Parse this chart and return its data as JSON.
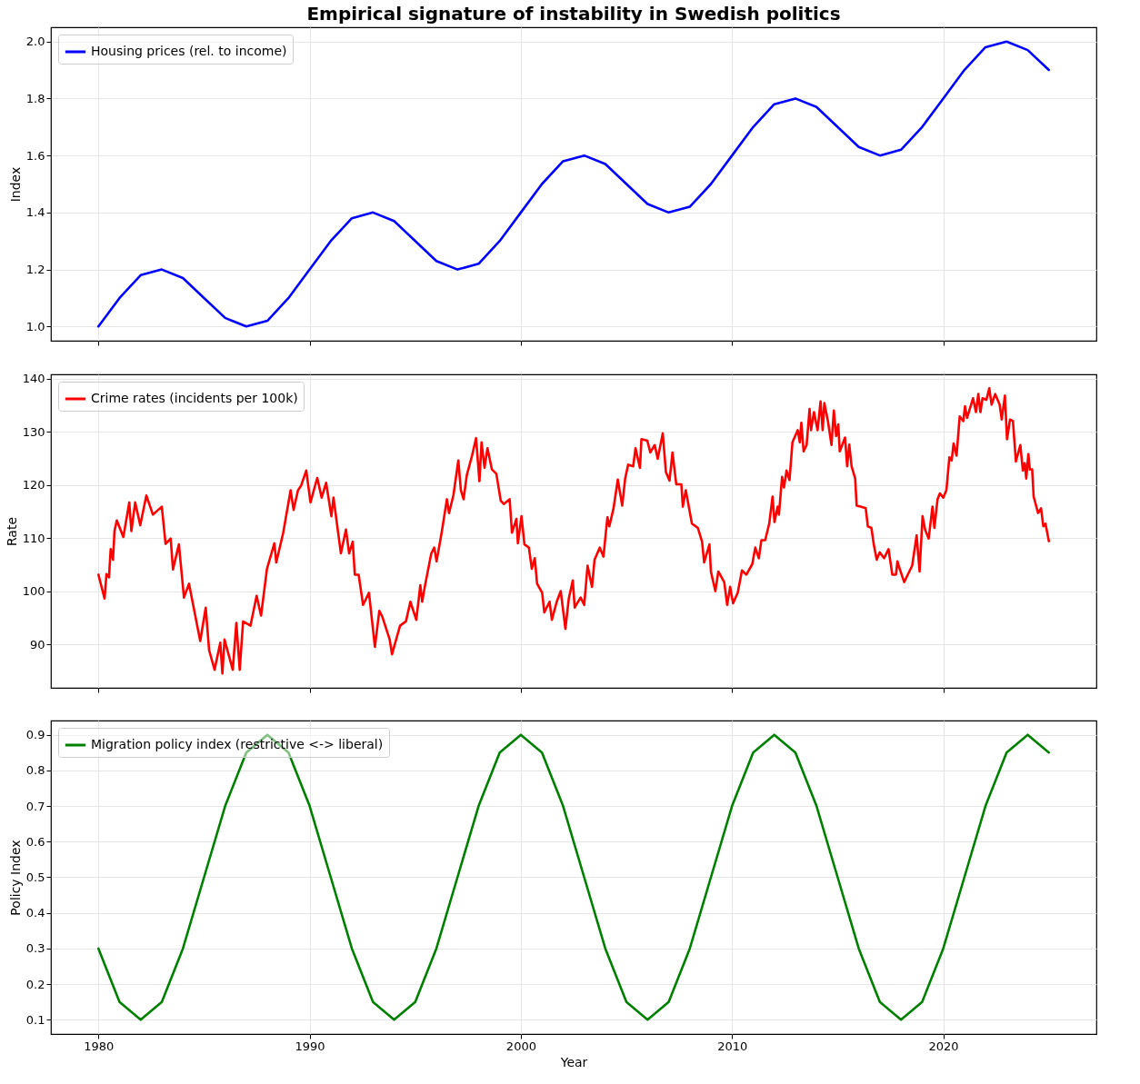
{
  "chart_data": [
    {
      "type": "line",
      "title": "Empirical signature of instability in Swedish politics",
      "ylabel": "Index",
      "x": [
        1980,
        1981,
        1982,
        1983,
        1984,
        1985,
        1986,
        1987,
        1988,
        1989,
        1990,
        1991,
        1992,
        1993,
        1994,
        1995,
        1996,
        1997,
        1998,
        1999,
        2000,
        2001,
        2002,
        2003,
        2004,
        2005,
        2006,
        2007,
        2008,
        2009,
        2010,
        2011,
        2012,
        2013,
        2014,
        2015,
        2016,
        2017,
        2018,
        2019,
        2020,
        2021,
        2022,
        2023,
        2024,
        2025
      ],
      "series": [
        {
          "name": "Housing prices (rel. to income)",
          "color": "#0000ff",
          "values": [
            1.0,
            1.1,
            1.18,
            1.2,
            1.17,
            1.1,
            1.03,
            1.0,
            1.02,
            1.1,
            1.2,
            1.3,
            1.38,
            1.4,
            1.37,
            1.3,
            1.23,
            1.2,
            1.22,
            1.3,
            1.4,
            1.5,
            1.58,
            1.6,
            1.57,
            1.5,
            1.43,
            1.4,
            1.42,
            1.5,
            1.6,
            1.7,
            1.78,
            1.8,
            1.77,
            1.7,
            1.63,
            1.6,
            1.62,
            1.7,
            1.8,
            1.9,
            1.98,
            2.0,
            1.97,
            1.9
          ]
        }
      ],
      "xlim": [
        1977.75,
        2027.25
      ],
      "xticks": [
        1980,
        1990,
        2000,
        2010,
        2020
      ],
      "ylim": [
        0.95,
        2.05
      ],
      "yticks": [
        {
          "value": 1.0,
          "label": "1.0"
        },
        {
          "value": 1.2,
          "label": "1.2"
        },
        {
          "value": 1.4,
          "label": "1.4"
        },
        {
          "value": 1.6,
          "label": "1.6"
        },
        {
          "value": 1.8,
          "label": "1.8"
        },
        {
          "value": 2.0,
          "label": "2.0"
        }
      ],
      "grid": true,
      "legend": "top left",
      "tick_labels": "y",
      "line_style": "solid",
      "marker": "none"
    },
    {
      "type": "line",
      "ylabel": "Rate",
      "x": [
        1980.0,
        1980.29,
        1980.38,
        1980.5,
        1980.58,
        1980.69,
        1980.76,
        1980.87,
        1981.18,
        1981.46,
        1981.56,
        1981.74,
        1981.98,
        1982.27,
        1982.58,
        1983.0,
        1983.18,
        1983.42,
        1983.53,
        1983.81,
        1984.05,
        1984.29,
        1984.51,
        1984.82,
        1985.08,
        1985.24,
        1985.5,
        1985.77,
        1985.87,
        1985.97,
        1986.36,
        1986.53,
        1986.69,
        1986.85,
        1987.2,
        1987.49,
        1987.7,
        1987.98,
        1988.33,
        1988.42,
        1988.75,
        1989.1,
        1989.24,
        1989.45,
        1989.59,
        1989.84,
        1990.04,
        1990.36,
        1990.57,
        1990.78,
        1991.03,
        1991.13,
        1991.48,
        1991.72,
        1991.87,
        1992.04,
        1992.14,
        1992.32,
        1992.53,
        1992.81,
        1993.09,
        1993.3,
        1993.44,
        1993.79,
        1993.9,
        1994.28,
        1994.56,
        1994.77,
        1995.05,
        1995.24,
        1995.33,
        1995.45,
        1995.76,
        1995.9,
        1996.01,
        1996.25,
        1996.5,
        1996.6,
        1996.81,
        1997.04,
        1997.16,
        1997.29,
        1997.44,
        1997.69,
        1997.88,
        1998.04,
        1998.14,
        1998.28,
        1998.42,
        1998.63,
        1998.84,
        1999.05,
        1999.19,
        1999.47,
        1999.58,
        1999.79,
        1999.86,
        2000.03,
        2000.17,
        2000.38,
        2000.52,
        2000.66,
        2000.77,
        2001.01,
        2001.11,
        2001.36,
        2001.47,
        2001.7,
        2001.89,
        2002.11,
        2002.27,
        2002.46,
        2002.55,
        2002.83,
        2003.0,
        2003.16,
        2003.37,
        2003.49,
        2003.74,
        2003.91,
        2004.1,
        2004.19,
        2004.39,
        2004.59,
        2004.8,
        2004.94,
        2005.08,
        2005.32,
        2005.43,
        2005.64,
        2005.71,
        2005.99,
        2006.13,
        2006.34,
        2006.48,
        2006.72,
        2006.87,
        2007.04,
        2007.18,
        2007.36,
        2007.6,
        2007.67,
        2007.81,
        2008.1,
        2008.38,
        2008.58,
        2008.68,
        2008.93,
        2009.0,
        2009.21,
        2009.35,
        2009.63,
        2009.77,
        2009.91,
        2010.05,
        2010.27,
        2010.47,
        2010.68,
        2010.96,
        2011.1,
        2011.27,
        2011.39,
        2011.57,
        2011.76,
        2011.92,
        2012.01,
        2012.16,
        2012.22,
        2012.37,
        2012.46,
        2012.58,
        2012.72,
        2012.86,
        2013.11,
        2013.21,
        2013.28,
        2013.39,
        2013.53,
        2013.67,
        2013.74,
        2013.88,
        2014.05,
        2014.19,
        2014.29,
        2014.37,
        2014.54,
        2014.71,
        2014.82,
        2014.93,
        2015.03,
        2015.1,
        2015.35,
        2015.45,
        2015.55,
        2015.66,
        2015.83,
        2015.9,
        2016.08,
        2016.33,
        2016.43,
        2016.6,
        2016.71,
        2016.85,
        2016.99,
        2017.2,
        2017.41,
        2017.59,
        2017.76,
        2017.83,
        2017.94,
        2018.15,
        2018.32,
        2018.53,
        2018.74,
        2018.88,
        2019.02,
        2019.14,
        2019.31,
        2019.49,
        2019.58,
        2019.73,
        2019.84,
        2020.0,
        2020.15,
        2020.29,
        2020.4,
        2020.49,
        2020.63,
        2020.78,
        2020.95,
        2021.03,
        2021.13,
        2021.41,
        2021.55,
        2021.66,
        2021.76,
        2021.86,
        2022.04,
        2022.18,
        2022.29,
        2022.46,
        2022.67,
        2022.77,
        2022.92,
        2023.02,
        2023.16,
        2023.3,
        2023.44,
        2023.65,
        2023.77,
        2023.86,
        2023.93,
        2024.03,
        2024.1,
        2024.21,
        2024.28,
        2024.49,
        2024.63,
        2024.74,
        2024.84,
        2025.0
      ],
      "series": [
        {
          "name": "Crime rates (incidents per 100k)",
          "color": "#ff0000",
          "values": [
            103.1,
            98.6,
            103.2,
            102.6,
            107.9,
            105.9,
            111.3,
            113.3,
            110.2,
            116.7,
            111.3,
            116.7,
            112.4,
            118.0,
            114.4,
            115.9,
            108.9,
            109.9,
            104.1,
            108.8,
            98.8,
            101.4,
            96.9,
            90.6,
            96.9,
            88.9,
            85.2,
            90.3,
            84.5,
            90.9,
            85.2,
            94.0,
            85.2,
            94.3,
            93.5,
            99.1,
            95.4,
            104.2,
            109.0,
            105.4,
            111.0,
            119.0,
            115.3,
            119.0,
            119.8,
            122.7,
            116.7,
            121.3,
            117.6,
            120.4,
            114.1,
            117.6,
            107.1,
            111.6,
            107.1,
            109.3,
            103.1,
            103.1,
            97.4,
            99.7,
            89.5,
            96.3,
            95.2,
            90.9,
            88.1,
            93.5,
            94.3,
            98.0,
            94.6,
            101.1,
            98.0,
            100.8,
            107.1,
            108.2,
            105.6,
            111.0,
            117.3,
            114.7,
            118.1,
            124.6,
            119.0,
            117.3,
            121.8,
            125.5,
            128.8,
            120.7,
            128.0,
            123.2,
            126.9,
            122.9,
            122.1,
            117.0,
            116.4,
            117.3,
            111.0,
            113.6,
            109.0,
            114.1,
            108.8,
            108.2,
            104.2,
            106.2,
            101.4,
            99.7,
            96.0,
            98.0,
            94.6,
            98.0,
            100.0,
            92.9,
            98.6,
            102.0,
            96.9,
            98.8,
            97.4,
            104.8,
            100.8,
            105.9,
            108.2,
            106.5,
            113.9,
            112.2,
            115.6,
            121.0,
            116.1,
            121.2,
            123.8,
            123.5,
            126.9,
            123.2,
            128.6,
            128.3,
            126.1,
            127.5,
            124.9,
            129.7,
            122.4,
            120.8,
            126.1,
            120.1,
            120.1,
            115.9,
            119.0,
            112.7,
            111.9,
            109.3,
            105.4,
            108.8,
            103.7,
            100.0,
            103.7,
            101.7,
            97.4,
            100.8,
            97.7,
            99.7,
            103.9,
            103.1,
            105.1,
            108.2,
            106.2,
            109.6,
            109.6,
            112.7,
            117.8,
            113.0,
            115.9,
            114.4,
            121.5,
            119.5,
            122.7,
            120.9,
            128.0,
            130.3,
            128.0,
            131.7,
            126.3,
            127.5,
            134.3,
            130.3,
            133.7,
            130.3,
            135.7,
            130.3,
            135.4,
            132.0,
            127.5,
            134.0,
            129.2,
            131.4,
            126.3,
            128.9,
            123.5,
            127.6,
            123.5,
            121.2,
            116.1,
            115.9,
            115.6,
            112.2,
            111.9,
            108.8,
            105.9,
            107.3,
            106.2,
            107.9,
            103.1,
            103.1,
            105.6,
            104.2,
            101.7,
            103.1,
            104.8,
            110.5,
            103.7,
            114.1,
            111.6,
            109.9,
            115.9,
            111.9,
            117.3,
            118.4,
            117.6,
            119.0,
            125.2,
            124.6,
            127.8,
            125.5,
            132.9,
            132.0,
            134.8,
            132.6,
            136.3,
            133.7,
            137.1,
            133.7,
            136.3,
            136.0,
            138.2,
            135.1,
            137.1,
            135.1,
            132.3,
            136.8,
            128.6,
            132.3,
            132.0,
            124.4,
            127.5,
            122.7,
            124.1,
            121.2,
            125.8,
            122.9,
            122.9,
            117.8,
            114.7,
            115.6,
            112.2,
            112.7,
            109.4
          ]
        }
      ],
      "xlim": [
        1977.75,
        2027.25
      ],
      "xticks": [
        1980,
        1990,
        2000,
        2010,
        2020
      ],
      "ylim": [
        81.8,
        140.8
      ],
      "yticks": [
        90,
        100,
        110,
        120,
        130,
        140
      ],
      "grid": true,
      "legend": "top left",
      "tick_labels": "y",
      "line_style": "solid",
      "marker": "none"
    },
    {
      "type": "line",
      "xlabel": "Year",
      "ylabel": "Policy Index",
      "x": [
        1980,
        1981,
        1982,
        1983,
        1984,
        1985,
        1986,
        1987,
        1988,
        1989,
        1990,
        1991,
        1992,
        1993,
        1994,
        1995,
        1996,
        1997,
        1998,
        1999,
        2000,
        2001,
        2002,
        2003,
        2004,
        2005,
        2006,
        2007,
        2008,
        2009,
        2010,
        2011,
        2012,
        2013,
        2014,
        2015,
        2016,
        2017,
        2018,
        2019,
        2020,
        2021,
        2022,
        2023,
        2024,
        2025
      ],
      "series": [
        {
          "name": "Migration policy index (restrictive <-> liberal)",
          "color": "#008000",
          "values": [
            0.3,
            0.15,
            0.1,
            0.15,
            0.3,
            0.5,
            0.7,
            0.85,
            0.9,
            0.85,
            0.7,
            0.5,
            0.3,
            0.15,
            0.1,
            0.15,
            0.3,
            0.5,
            0.7,
            0.85,
            0.9,
            0.85,
            0.7,
            0.5,
            0.3,
            0.15,
            0.1,
            0.15,
            0.3,
            0.5,
            0.7,
            0.85,
            0.9,
            0.85,
            0.7,
            0.5,
            0.3,
            0.15,
            0.1,
            0.15,
            0.3,
            0.5,
            0.7,
            0.85,
            0.9,
            0.85
          ]
        }
      ],
      "xlim": [
        1977.75,
        2027.25
      ],
      "xticks": [
        1980,
        1990,
        2000,
        2010,
        2020
      ],
      "ylim": [
        0.06,
        0.94
      ],
      "yticks": [
        0.1,
        0.2,
        0.3,
        0.4,
        0.5,
        0.6,
        0.7,
        0.8,
        0.9
      ],
      "grid": true,
      "legend": "top left",
      "line_style": "solid",
      "marker": "none"
    }
  ]
}
